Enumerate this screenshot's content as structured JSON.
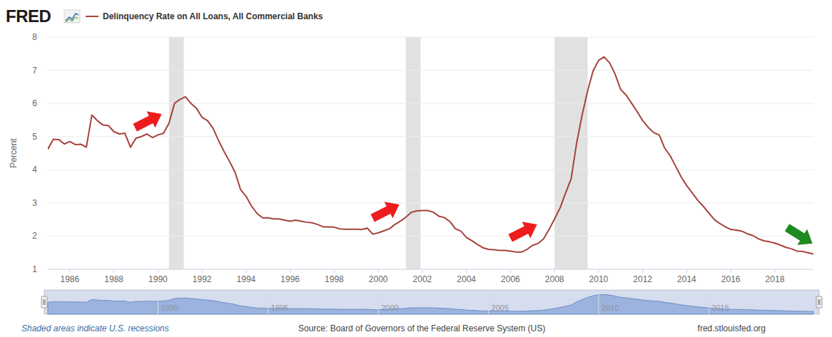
{
  "chart_data": {
    "type": "line",
    "brand": "FRED",
    "y_label": "Percent",
    "recession_note": "Shaded areas indicate U.S. recessions",
    "source": "Source: Board of Governors of the Federal Reserve System (US)",
    "site": "fred.stlouisfed.org",
    "legend": "top-left",
    "grid": true,
    "xlim": [
      1985,
      2019.75
    ],
    "ylim": [
      1,
      8
    ],
    "xticks": [
      1986,
      1988,
      1990,
      1992,
      1994,
      1996,
      1998,
      2000,
      2002,
      2004,
      2006,
      2008,
      2010,
      2012,
      2014,
      2016,
      2018
    ],
    "yticks": [
      1,
      2,
      3,
      4,
      5,
      6,
      7,
      8
    ],
    "navigator_ticks": [
      1990,
      1995,
      2000,
      2005,
      2010,
      2015
    ],
    "recession_shading": [
      [
        1990.5,
        1991.17
      ],
      [
        2001.25,
        2001.92
      ],
      [
        2008.0,
        2009.5
      ]
    ],
    "x": [
      1985,
      1985.25,
      1985.5,
      1985.75,
      1986,
      1986.25,
      1986.5,
      1986.75,
      1987,
      1987.25,
      1987.5,
      1987.75,
      1988,
      1988.25,
      1988.5,
      1988.75,
      1989,
      1989.25,
      1989.5,
      1989.75,
      1990,
      1990.25,
      1990.5,
      1990.75,
      1991,
      1991.25,
      1991.5,
      1991.75,
      1992,
      1992.25,
      1992.5,
      1992.75,
      1993,
      1993.25,
      1993.5,
      1993.75,
      1994,
      1994.25,
      1994.5,
      1994.75,
      1995,
      1995.25,
      1995.5,
      1995.75,
      1996,
      1996.25,
      1996.5,
      1996.75,
      1997,
      1997.25,
      1997.5,
      1997.75,
      1998,
      1998.25,
      1998.5,
      1998.75,
      1999,
      1999.25,
      1999.5,
      1999.75,
      2000,
      2000.25,
      2000.5,
      2000.75,
      2001,
      2001.25,
      2001.5,
      2001.75,
      2002,
      2002.25,
      2002.5,
      2002.75,
      2003,
      2003.25,
      2003.5,
      2003.75,
      2004,
      2004.25,
      2004.5,
      2004.75,
      2005,
      2005.25,
      2005.5,
      2005.75,
      2006,
      2006.25,
      2006.5,
      2006.75,
      2007,
      2007.25,
      2007.5,
      2007.75,
      2008,
      2008.25,
      2008.5,
      2008.75,
      2009,
      2009.25,
      2009.5,
      2009.75,
      2010,
      2010.25,
      2010.5,
      2010.75,
      2011,
      2011.25,
      2011.5,
      2011.75,
      2012,
      2012.25,
      2012.5,
      2012.75,
      2013,
      2013.25,
      2013.5,
      2013.75,
      2014,
      2014.25,
      2014.5,
      2014.75,
      2015,
      2015.25,
      2015.5,
      2015.75,
      2016,
      2016.25,
      2016.5,
      2016.75,
      2017,
      2017.25,
      2017.5,
      2017.75,
      2018,
      2018.25,
      2018.5,
      2018.75,
      2019,
      2019.25,
      2019.5,
      2019.75
    ],
    "series": [
      {
        "name": "Delinquency Rate on All Loans, All Commercial Banks",
        "color": "#a5423b",
        "values": [
          4.62,
          4.92,
          4.91,
          4.78,
          4.85,
          4.76,
          4.77,
          4.68,
          5.65,
          5.48,
          5.35,
          5.33,
          5.15,
          5.08,
          5.1,
          4.68,
          4.95,
          5.0,
          5.08,
          4.97,
          5.05,
          5.1,
          5.4,
          6.0,
          6.12,
          6.2,
          6.0,
          5.85,
          5.58,
          5.48,
          5.25,
          4.88,
          4.55,
          4.25,
          3.92,
          3.4,
          3.2,
          2.9,
          2.68,
          2.55,
          2.55,
          2.52,
          2.52,
          2.48,
          2.45,
          2.48,
          2.45,
          2.42,
          2.4,
          2.35,
          2.28,
          2.28,
          2.27,
          2.22,
          2.21,
          2.21,
          2.21,
          2.2,
          2.24,
          2.06,
          2.1,
          2.16,
          2.22,
          2.35,
          2.45,
          2.57,
          2.72,
          2.76,
          2.77,
          2.77,
          2.72,
          2.6,
          2.56,
          2.44,
          2.22,
          2.15,
          1.96,
          1.86,
          1.75,
          1.65,
          1.6,
          1.59,
          1.57,
          1.57,
          1.55,
          1.52,
          1.52,
          1.6,
          1.72,
          1.78,
          1.92,
          2.2,
          2.52,
          2.85,
          3.3,
          3.72,
          4.8,
          5.65,
          6.38,
          6.98,
          7.3,
          7.4,
          7.22,
          6.88,
          6.42,
          6.25,
          6.0,
          5.75,
          5.48,
          5.28,
          5.12,
          5.05,
          4.65,
          4.42,
          4.1,
          3.78,
          3.52,
          3.3,
          3.08,
          2.9,
          2.7,
          2.5,
          2.38,
          2.28,
          2.2,
          2.18,
          2.15,
          2.07,
          2.02,
          1.92,
          1.86,
          1.83,
          1.79,
          1.73,
          1.66,
          1.62,
          1.55,
          1.54,
          1.5,
          1.46
        ]
      }
    ]
  }
}
